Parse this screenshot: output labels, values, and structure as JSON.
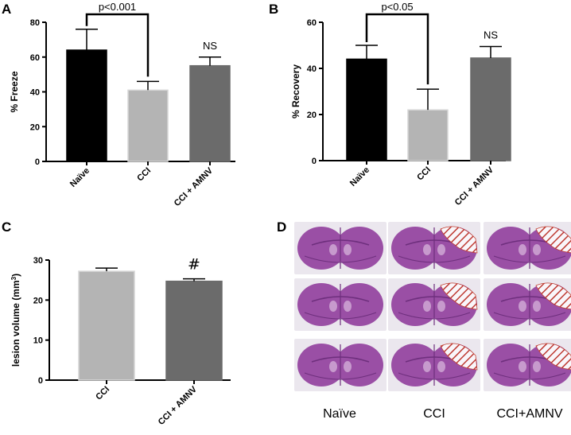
{
  "colors": {
    "naive": "#000000",
    "cci": "#b4b4b4",
    "cci_amnv": "#6b6b6b",
    "brain_tissue": "#9a4fa5",
    "brain_dark": "#6e2f7d",
    "lesion_hatch": "#c0392b"
  },
  "chart_data": [
    {
      "panel": "A",
      "type": "bar",
      "title": "",
      "categories": [
        "Naïve",
        "CCI",
        "CCI + AMNV"
      ],
      "values": [
        64,
        41,
        55
      ],
      "errors": [
        12,
        5,
        5
      ],
      "xlabel": "",
      "ylabel": "% Freeze",
      "ylim": [
        0,
        80
      ],
      "yticks": [
        "0",
        "20",
        "40",
        "60",
        "80"
      ],
      "grid": false,
      "annotations": [
        {
          "text": "p<0.001",
          "type": "bracket",
          "from": "Naïve",
          "to": "CCI"
        },
        {
          "text": "NS",
          "type": "label",
          "at": "CCI + AMNV"
        }
      ]
    },
    {
      "panel": "B",
      "type": "bar",
      "title": "",
      "categories": [
        "Naïve",
        "CCI",
        "CCI + AMNV"
      ],
      "values": [
        44,
        22,
        44.5
      ],
      "errors": [
        6,
        9,
        5
      ],
      "xlabel": "",
      "ylabel": "% Recovery",
      "ylim": [
        0,
        60
      ],
      "yticks": [
        "0",
        "20",
        "40",
        "60"
      ],
      "grid": false,
      "annotations": [
        {
          "text": "p<0.05",
          "type": "bracket",
          "from": "Naïve",
          "to": "CCI"
        },
        {
          "text": "NS",
          "type": "label",
          "at": "CCI + AMNV"
        }
      ]
    },
    {
      "panel": "C",
      "type": "bar",
      "title": "",
      "categories": [
        "CCI",
        "CCI + AMNV"
      ],
      "values": [
        27.2,
        24.7
      ],
      "errors": [
        0.8,
        0.6
      ],
      "xlabel": "",
      "ylabel": "lesion volume (mm³)",
      "ylim": [
        0,
        30
      ],
      "yticks": [
        "0",
        "10",
        "20",
        "30"
      ],
      "grid": false,
      "annotations": [
        {
          "text": "#",
          "type": "label",
          "at": "CCI + AMNV"
        }
      ]
    }
  ],
  "panel_labels": {
    "a": "A",
    "b": "B",
    "c": "C",
    "d": "D"
  },
  "panel_d": {
    "column_labels": [
      "Naïve",
      "CCI",
      "CCI+AMNV"
    ],
    "rows": 3
  }
}
